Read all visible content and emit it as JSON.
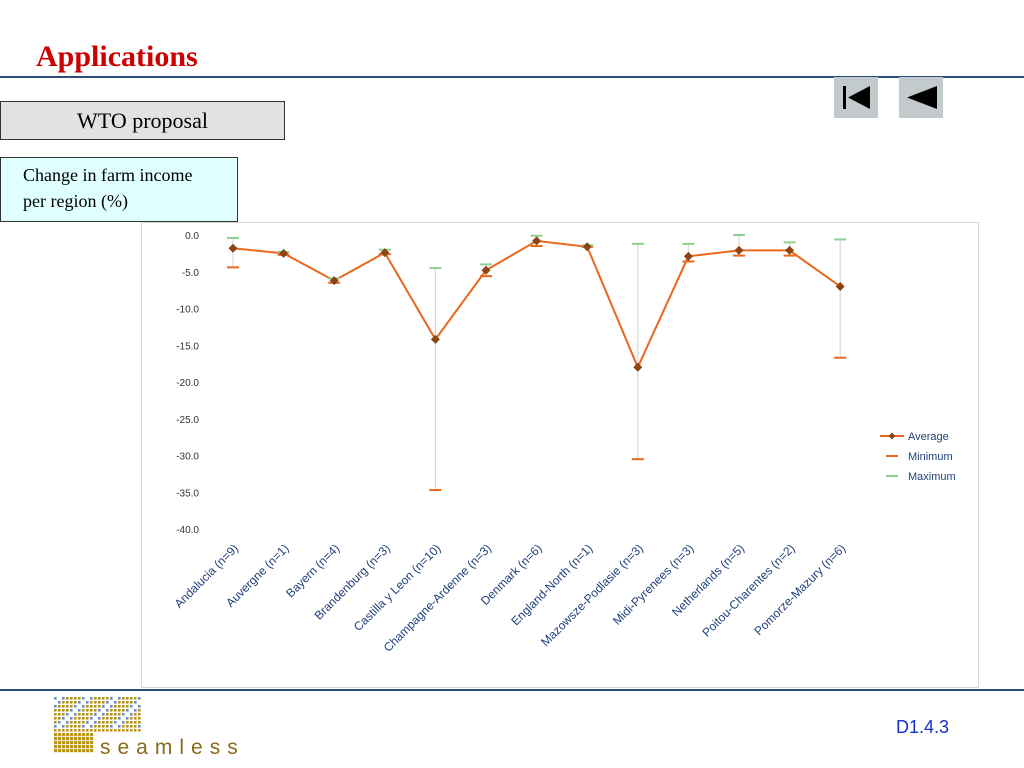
{
  "slide": {
    "title": "Applications",
    "subtitle_box": "WTO proposal",
    "description_line1": "Change in farm income",
    "description_line2": "per region (%)",
    "slide_id": "D1.4.3",
    "logo_text": "seamless"
  },
  "nav": {
    "first_icon": "skip-to-first-icon",
    "prev_icon": "previous-triangle-icon"
  },
  "colors": {
    "title": "#cc0000",
    "rule": "#2e4d7b",
    "average": "#e8681e",
    "average_marker": "#8b4513",
    "minimum": "#e8681e",
    "maximum": "#8fcf8f",
    "range_line": "#d8d8d8",
    "slide_id": "#1a2ecc",
    "logo": "#b8961e"
  },
  "chart_data": {
    "type": "line",
    "title": "",
    "xlabel": "",
    "ylabel": "",
    "ylim": [
      -40,
      0
    ],
    "yticks": [
      "0.0",
      "-5.0",
      "-10.0",
      "-15.0",
      "-20.0",
      "-25.0",
      "-30.0",
      "-35.0",
      "-40.0"
    ],
    "ytick_values": [
      0,
      -5,
      -10,
      -15,
      -20,
      -25,
      -30,
      -35,
      -40
    ],
    "grid": false,
    "legend_position": "right",
    "categories": [
      "Andalucia (n=9)",
      "Auvergne (n=1)",
      "Bayern (n=4)",
      "Brandenburg (n=3)",
      "Castilla y Leon (n=10)",
      "Champagne-Ardenne (n=3)",
      "Denmark (n=6)",
      "England-North (n=1)",
      "Mazowsze-Podlasie (n=3)",
      "Midi-Pyrenees (n=3)",
      "Netherlands (n=5)",
      "Poitou-Charentes (n=2)",
      "Pomorze-Mazury (n=6)"
    ],
    "series": [
      {
        "name": "Average",
        "values": [
          -1.8,
          -2.5,
          -6.2,
          -2.4,
          -14.2,
          -4.8,
          -0.8,
          -1.6,
          -18.0,
          -2.9,
          -2.1,
          -2.1,
          -7.0
        ]
      },
      {
        "name": "Minimum",
        "values": [
          -4.4,
          -2.7,
          -6.5,
          -2.6,
          -34.7,
          -5.6,
          -1.5,
          -1.6,
          -30.5,
          -3.6,
          -2.8,
          -2.8,
          -16.7
        ]
      },
      {
        "name": "Maximum",
        "values": [
          -0.4,
          -2.3,
          -5.9,
          -2.0,
          -4.5,
          -4.0,
          -0.1,
          -1.4,
          -1.2,
          -1.2,
          0.0,
          -1.0,
          -0.6
        ]
      }
    ]
  }
}
